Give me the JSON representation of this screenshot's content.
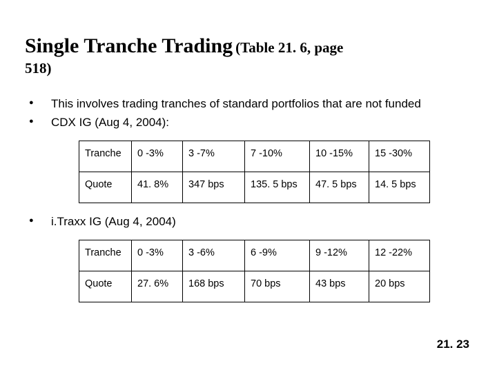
{
  "title": {
    "main": "Single Tranche Trading",
    "sub_part1": "(Table 21. 6, page",
    "sub_part2": "518)"
  },
  "bullets_top": [
    "This involves trading tranches of standard portfolios that are not funded",
    "CDX IG (Aug 4, 2004):"
  ],
  "table_cdx": {
    "rows": [
      [
        "Tranche",
        "0 -3%",
        "3 -7%",
        "7 -10%",
        "10 -15%",
        "15 -30%"
      ],
      [
        "Quote",
        "41. 8%",
        "347 bps",
        "135. 5 bps",
        "47. 5 bps",
        "14. 5 bps"
      ]
    ]
  },
  "bullets_mid": [
    "i.Traxx IG (Aug 4, 2004)"
  ],
  "table_itraxx": {
    "rows": [
      [
        "Tranche",
        "0 -3%",
        "3 -6%",
        "6 -9%",
        "9 -12%",
        "12 -22%"
      ],
      [
        "Quote",
        "27. 6%",
        "168 bps",
        "70 bps",
        "43 bps",
        "20 bps"
      ]
    ]
  },
  "page_number": "21. 23",
  "colors": {
    "text": "#000000",
    "background": "#ffffff",
    "border": "#000000"
  }
}
